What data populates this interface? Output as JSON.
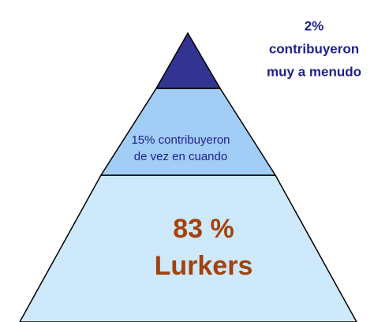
{
  "layers": [
    {
      "label": [
        "2%",
        "contribuyeron",
        "muy a menudo"
      ]
    },
    {
      "label": [
        "15% contribuyeron",
        "de vez en cuando"
      ]
    },
    {
      "label": [
        "83 %",
        "Lurkers"
      ]
    }
  ]
}
